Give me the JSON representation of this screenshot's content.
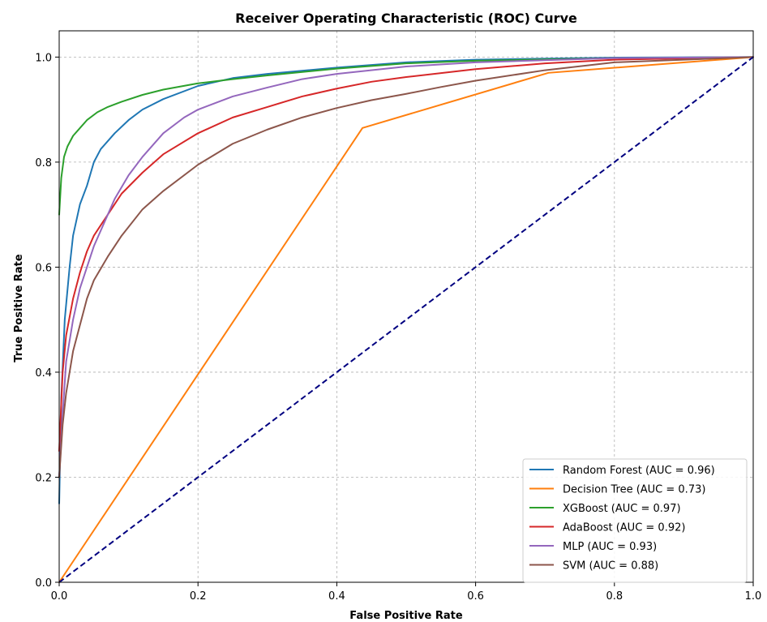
{
  "chart_data": {
    "type": "line",
    "title": "Receiver Operating Characteristic (ROC) Curve",
    "xlabel": "False Positive Rate",
    "ylabel": "True Positive Rate",
    "xlim": [
      0.0,
      1.0
    ],
    "ylim": [
      0.0,
      1.05
    ],
    "xticks": [
      "0.0",
      "0.2",
      "0.4",
      "0.6",
      "0.8",
      "1.0"
    ],
    "yticks": [
      "0.0",
      "0.2",
      "0.4",
      "0.6",
      "0.8",
      "1.0"
    ],
    "grid": true,
    "legend_position": "lower-right",
    "series": [
      {
        "name": "Random Forest (AUC = 0.96)",
        "color": "#1f77b4",
        "points": [
          [
            0,
            0.15
          ],
          [
            0.003,
            0.35
          ],
          [
            0.008,
            0.5
          ],
          [
            0.015,
            0.6
          ],
          [
            0.02,
            0.66
          ],
          [
            0.03,
            0.72
          ],
          [
            0.04,
            0.755
          ],
          [
            0.05,
            0.8
          ],
          [
            0.06,
            0.825
          ],
          [
            0.08,
            0.855
          ],
          [
            0.1,
            0.88
          ],
          [
            0.12,
            0.9
          ],
          [
            0.15,
            0.92
          ],
          [
            0.2,
            0.945
          ],
          [
            0.25,
            0.96
          ],
          [
            0.3,
            0.968
          ],
          [
            0.4,
            0.98
          ],
          [
            0.5,
            0.99
          ],
          [
            0.6,
            0.995
          ],
          [
            0.8,
            0.999
          ],
          [
            1.0,
            1.0
          ]
        ]
      },
      {
        "name": "Decision Tree (AUC = 0.73)",
        "color": "#ff7f0e",
        "points": [
          [
            0,
            0
          ],
          [
            0.437,
            0.865
          ],
          [
            0.705,
            0.97
          ],
          [
            1.0,
            1.0
          ]
        ]
      },
      {
        "name": "XGBoost (AUC = 0.97)",
        "color": "#2ca02c",
        "points": [
          [
            0,
            0.7
          ],
          [
            0.003,
            0.77
          ],
          [
            0.007,
            0.81
          ],
          [
            0.012,
            0.83
          ],
          [
            0.02,
            0.85
          ],
          [
            0.03,
            0.865
          ],
          [
            0.04,
            0.88
          ],
          [
            0.055,
            0.895
          ],
          [
            0.07,
            0.905
          ],
          [
            0.09,
            0.915
          ],
          [
            0.12,
            0.928
          ],
          [
            0.15,
            0.938
          ],
          [
            0.2,
            0.95
          ],
          [
            0.25,
            0.958
          ],
          [
            0.3,
            0.965
          ],
          [
            0.4,
            0.978
          ],
          [
            0.5,
            0.988
          ],
          [
            0.6,
            0.993
          ],
          [
            0.8,
            0.998
          ],
          [
            1.0,
            1.0
          ]
        ]
      },
      {
        "name": "AdaBoost (AUC = 0.92)",
        "color": "#d62728",
        "points": [
          [
            0,
            0.25
          ],
          [
            0.005,
            0.4
          ],
          [
            0.01,
            0.47
          ],
          [
            0.02,
            0.54
          ],
          [
            0.03,
            0.59
          ],
          [
            0.04,
            0.63
          ],
          [
            0.05,
            0.66
          ],
          [
            0.07,
            0.7
          ],
          [
            0.09,
            0.74
          ],
          [
            0.12,
            0.78
          ],
          [
            0.15,
            0.815
          ],
          [
            0.2,
            0.855
          ],
          [
            0.25,
            0.885
          ],
          [
            0.3,
            0.905
          ],
          [
            0.35,
            0.925
          ],
          [
            0.4,
            0.94
          ],
          [
            0.45,
            0.953
          ],
          [
            0.5,
            0.962
          ],
          [
            0.6,
            0.977
          ],
          [
            0.7,
            0.988
          ],
          [
            0.8,
            0.995
          ],
          [
            1.0,
            1.0
          ]
        ]
      },
      {
        "name": "MLP (AUC = 0.93)",
        "color": "#9467bd",
        "points": [
          [
            0,
            0.2
          ],
          [
            0.005,
            0.32
          ],
          [
            0.01,
            0.42
          ],
          [
            0.02,
            0.5
          ],
          [
            0.03,
            0.56
          ],
          [
            0.04,
            0.6
          ],
          [
            0.05,
            0.64
          ],
          [
            0.06,
            0.67
          ],
          [
            0.07,
            0.7
          ],
          [
            0.08,
            0.73
          ],
          [
            0.1,
            0.775
          ],
          [
            0.12,
            0.81
          ],
          [
            0.15,
            0.855
          ],
          [
            0.18,
            0.885
          ],
          [
            0.2,
            0.9
          ],
          [
            0.25,
            0.925
          ],
          [
            0.3,
            0.942
          ],
          [
            0.35,
            0.958
          ],
          [
            0.4,
            0.968
          ],
          [
            0.5,
            0.982
          ],
          [
            0.6,
            0.99
          ],
          [
            0.8,
            0.998
          ],
          [
            1.0,
            1.0
          ]
        ]
      },
      {
        "name": "SVM (AUC = 0.88)",
        "color": "#8c564b",
        "points": [
          [
            0,
            0.2
          ],
          [
            0.005,
            0.3
          ],
          [
            0.01,
            0.36
          ],
          [
            0.02,
            0.44
          ],
          [
            0.03,
            0.49
          ],
          [
            0.04,
            0.54
          ],
          [
            0.05,
            0.575
          ],
          [
            0.07,
            0.62
          ],
          [
            0.09,
            0.66
          ],
          [
            0.12,
            0.71
          ],
          [
            0.15,
            0.745
          ],
          [
            0.2,
            0.795
          ],
          [
            0.25,
            0.835
          ],
          [
            0.3,
            0.862
          ],
          [
            0.35,
            0.885
          ],
          [
            0.4,
            0.903
          ],
          [
            0.45,
            0.918
          ],
          [
            0.5,
            0.93
          ],
          [
            0.55,
            0.943
          ],
          [
            0.6,
            0.955
          ],
          [
            0.7,
            0.975
          ],
          [
            0.8,
            0.99
          ],
          [
            1.0,
            1.0
          ]
        ]
      },
      {
        "name": "",
        "color": "#000080",
        "dashed": true,
        "points": [
          [
            0,
            0
          ],
          [
            1,
            1
          ]
        ]
      }
    ]
  }
}
